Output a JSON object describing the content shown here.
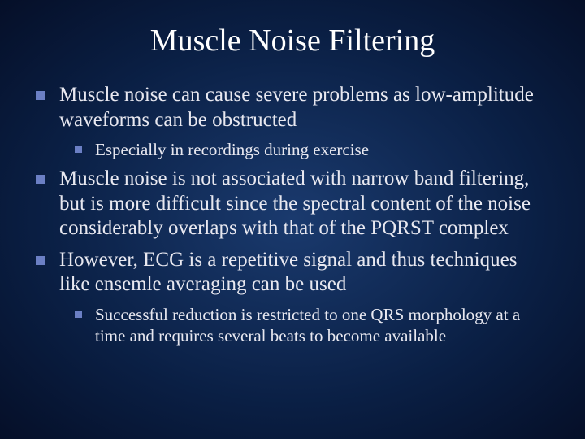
{
  "slide": {
    "title": "Muscle Noise Filtering",
    "background_gradient": [
      "#1a3a6e",
      "#0a1f44",
      "#050f28"
    ],
    "bullet_color": "#6b7fc4",
    "text_color": "#e8e8f0",
    "title_fontsize": 38,
    "body_fontsize_l1": 25,
    "body_fontsize_l2": 21,
    "items": [
      {
        "text": "Muscle noise can cause severe problems as low-amplitude waveforms can be obstructed",
        "level": 1
      },
      {
        "text": "Especially in recordings during exercise",
        "level": 2
      },
      {
        "text": "Muscle noise is not associated with narrow band filtering, but is more difficult since the spectral content of the noise considerably overlaps with that of the PQRST complex",
        "level": 1
      },
      {
        "text": "However, ECG is a repetitive signal and thus techniques like ensemle averaging can be used",
        "level": 1
      },
      {
        "text": "Successful reduction is restricted to one QRS morphology at a time and requires several beats to become available",
        "level": 2
      }
    ]
  }
}
